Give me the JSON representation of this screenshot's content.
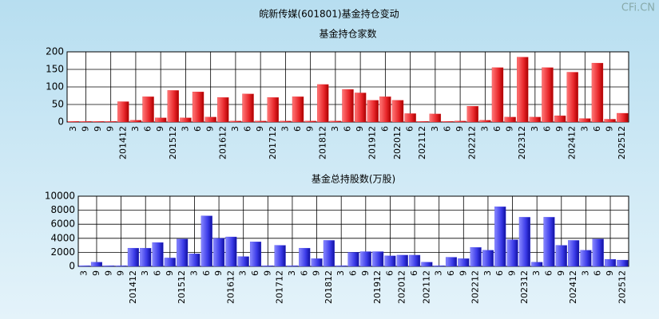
{
  "title": "皖新传媒(601801)基金持仓变动",
  "watermark": "CFi.CN",
  "chart_data": [
    {
      "type": "bar",
      "title": "基金持仓家数",
      "color": "#e8262a",
      "categories": [
        "3",
        "9",
        "9",
        "9",
        "201412",
        "3",
        "6",
        "9",
        "201512",
        "3",
        "6",
        "9",
        "201612",
        "3",
        "6",
        "9",
        "201712",
        "3",
        "6",
        "9",
        "201812",
        "3",
        "6",
        "9",
        "201912",
        "6",
        "202012",
        "6",
        "202112",
        "3",
        "6",
        "9",
        "202212",
        "3",
        "6",
        "9",
        "202312",
        "3",
        "6",
        "9",
        "202412",
        "3",
        "6",
        "9",
        "202512"
      ],
      "values": [
        2,
        2,
        2,
        2,
        58,
        5,
        72,
        12,
        90,
        12,
        86,
        14,
        70,
        3,
        80,
        3,
        70,
        3,
        72,
        3,
        107,
        3,
        93,
        83,
        62,
        72,
        62,
        24,
        2,
        23,
        2,
        3,
        45,
        5,
        155,
        14,
        185,
        14,
        155,
        18,
        142,
        10,
        168,
        8,
        25
      ],
      "ylim": [
        0,
        200
      ],
      "yticks": [
        0,
        50,
        100,
        150,
        200
      ],
      "grid": true
    },
    {
      "type": "bar",
      "title": "基金总持股数(万股)",
      "color": "#3b3be8",
      "categories": [
        "3",
        "9",
        "9",
        "9",
        "201412",
        "3",
        "6",
        "9",
        "201512",
        "3",
        "6",
        "9",
        "201612",
        "3",
        "6",
        "9",
        "201712",
        "3",
        "6",
        "9",
        "201812",
        "3",
        "6",
        "9",
        "201912",
        "6",
        "202012",
        "6",
        "202112",
        "3",
        "6",
        "9",
        "202212",
        "3",
        "6",
        "9",
        "202312",
        "3",
        "6",
        "9",
        "202412",
        "3",
        "6",
        "9",
        "202512"
      ],
      "values": [
        100,
        600,
        100,
        100,
        2600,
        2600,
        3400,
        1200,
        3900,
        1800,
        7200,
        4000,
        4200,
        1400,
        3500,
        100,
        3000,
        100,
        2600,
        1100,
        3700,
        100,
        2000,
        2100,
        2100,
        1500,
        1600,
        1600,
        600,
        100,
        1300,
        1100,
        2700,
        2300,
        8500,
        3800,
        7000,
        600,
        7000,
        3000,
        3700,
        2300,
        3900,
        1000,
        900
      ],
      "ylim": [
        0,
        10000
      ],
      "yticks": [
        0,
        2000,
        4000,
        6000,
        8000,
        10000
      ],
      "grid": true
    }
  ]
}
